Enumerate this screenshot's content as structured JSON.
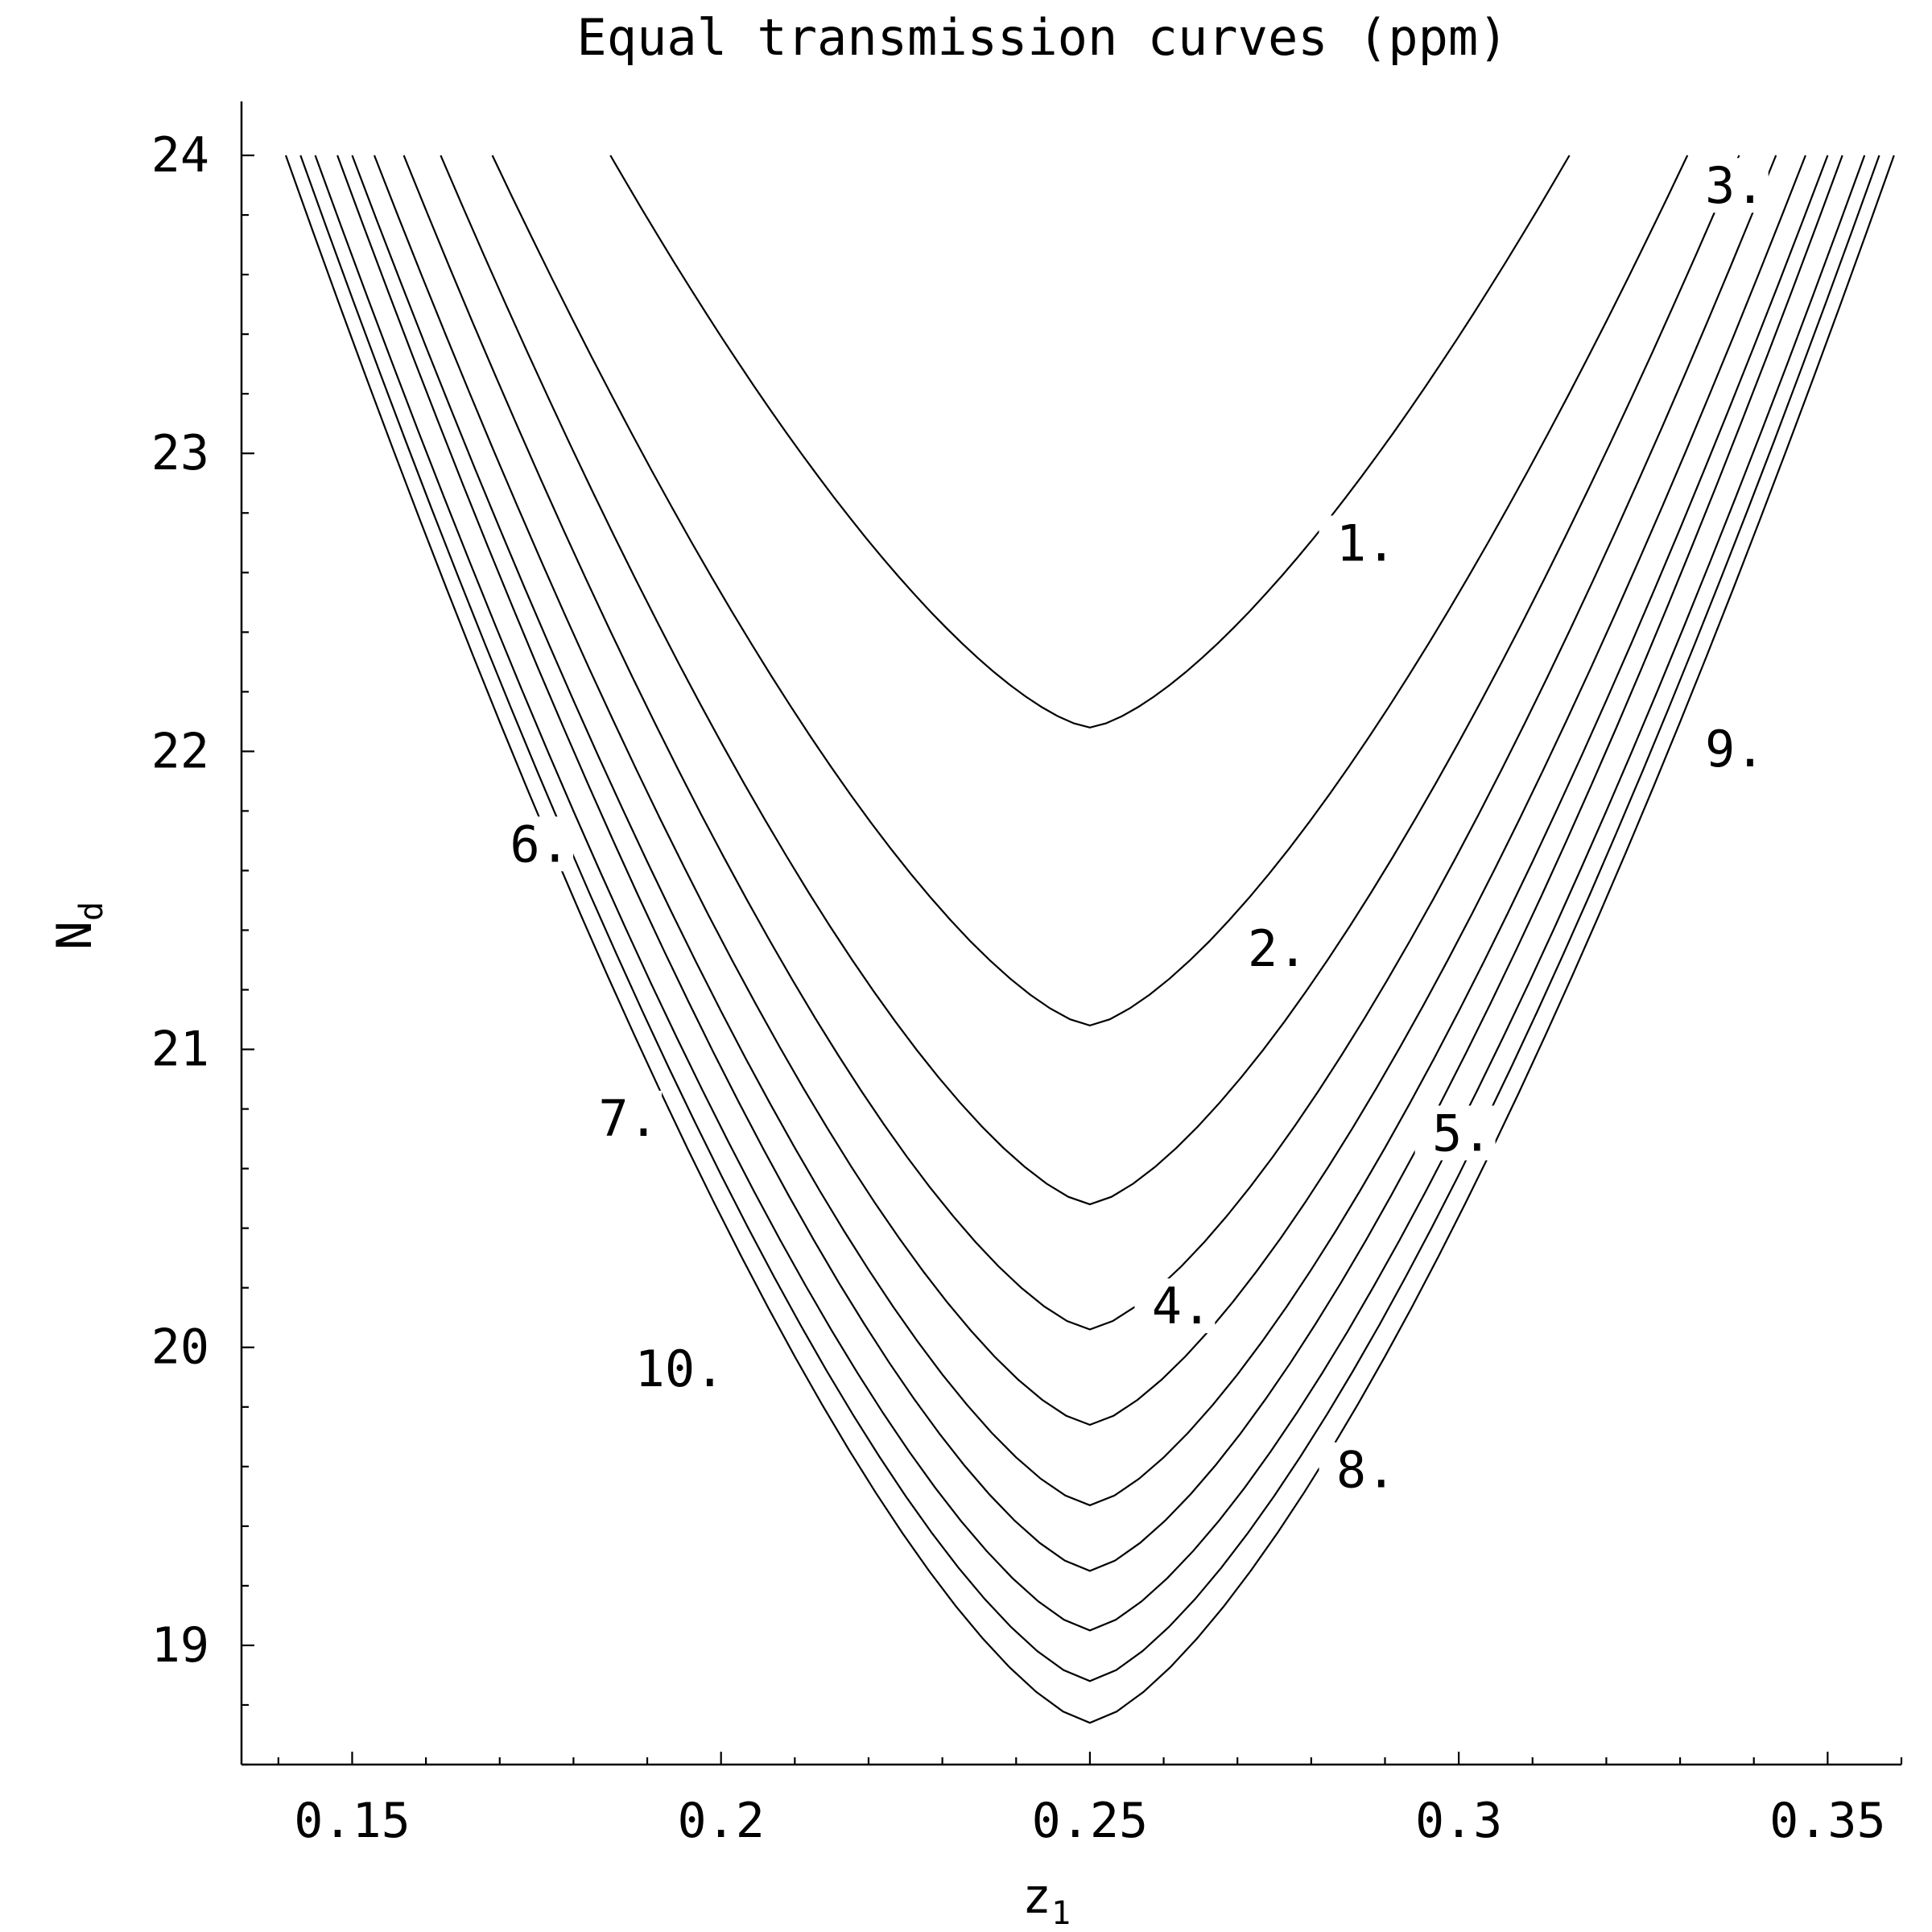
{
  "chart_data": {
    "type": "contour",
    "title": "Equal transmission curves (ppm)",
    "xlabel": {
      "main": "z",
      "sub": "1"
    },
    "ylabel": {
      "main": "N",
      "sub": "d"
    },
    "xlim": [
      0.135,
      0.36
    ],
    "ylim": [
      18.6,
      24.1
    ],
    "xticks": [
      {
        "value": 0.15,
        "label": "0.15"
      },
      {
        "value": 0.2,
        "label": "0.2"
      },
      {
        "value": 0.25,
        "label": "0.25"
      },
      {
        "value": 0.3,
        "label": "0.3"
      },
      {
        "value": 0.35,
        "label": "0.35"
      }
    ],
    "yticks": [
      {
        "value": 19,
        "label": "19"
      },
      {
        "value": 20,
        "label": "20"
      },
      {
        "value": 21,
        "label": "21"
      },
      {
        "value": 22,
        "label": "22"
      },
      {
        "value": 23,
        "label": "23"
      },
      {
        "value": 24,
        "label": "24"
      }
    ],
    "contours": [
      {
        "level": 1,
        "label": "1.",
        "vertex": 22.08,
        "left_x_at_top": 0.185,
        "right_x_at_top": 0.315,
        "label_x": 0.29,
        "label_y": 22.64
      },
      {
        "level": 2,
        "label": "2.",
        "vertex": 21.08,
        "left_x_at_top": 0.169,
        "right_x_at_top": 0.331,
        "label_x": 0.278,
        "label_y": 21.28
      },
      {
        "level": 3,
        "label": "3.",
        "vertex": 20.48,
        "left_x_at_top": 0.162,
        "right_x_at_top": 0.338,
        "label_x": 0.34,
        "label_y": 23.84
      },
      {
        "level": 4,
        "label": "4.",
        "vertex": 20.06,
        "left_x_at_top": 0.157,
        "right_x_at_top": 0.343,
        "label_x": 0.265,
        "label_y": 20.08
      },
      {
        "level": 5,
        "label": "5.",
        "vertex": 19.74,
        "left_x_at_top": 0.153,
        "right_x_at_top": 0.347,
        "label_x": 0.303,
        "label_y": 20.66
      },
      {
        "level": 6,
        "label": "6.",
        "vertex": 19.47,
        "left_x_at_top": 0.15,
        "right_x_at_top": 0.35,
        "label_x": 0.178,
        "label_y": 21.63
      },
      {
        "level": 7,
        "label": "7.",
        "vertex": 19.25,
        "left_x_at_top": 0.148,
        "right_x_at_top": 0.352,
        "label_x": 0.19,
        "label_y": 20.71
      },
      {
        "level": 8,
        "label": "8.",
        "vertex": 19.05,
        "left_x_at_top": 0.145,
        "right_x_at_top": 0.355,
        "label_x": 0.29,
        "label_y": 19.53
      },
      {
        "level": 9,
        "label": "9.",
        "vertex": 18.88,
        "left_x_at_top": 0.143,
        "right_x_at_top": 0.357,
        "label_x": 0.34,
        "label_y": 21.95
      },
      {
        "level": 10,
        "label": "10.",
        "vertex": 18.74,
        "left_x_at_top": 0.141,
        "right_x_at_top": 0.359,
        "label_x": 0.199,
        "label_y": 19.87
      }
    ],
    "grid": false,
    "legend": "none"
  }
}
